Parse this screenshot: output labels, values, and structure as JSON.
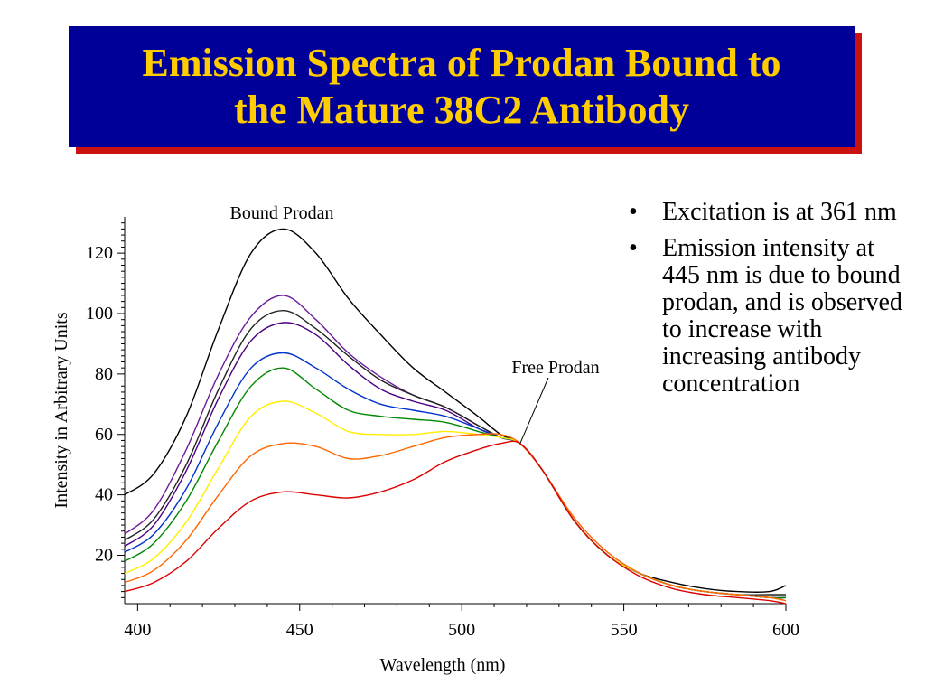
{
  "slide": {
    "title_line1": "Emission Spectra of Prodan Bound to",
    "title_line2": "the Mature 38C2 Antibody",
    "colors": {
      "title_bg": "#000099",
      "title_text": "#ffcc00",
      "title_shadow": "#cc1111"
    }
  },
  "bullets": [
    "Excitation is at 361 nm",
    "Emission intensity at 445 nm is due to bound prodan, and is observed to increase with increasing antibody concentration"
  ],
  "chart_data": {
    "type": "line",
    "title": "",
    "xlabel": "Wavelength (nm)",
    "ylabel": "Intensity in Arbitrary Units",
    "xlim": [
      396,
      600
    ],
    "ylim": [
      4,
      132
    ],
    "xticks": [
      400,
      450,
      500,
      550,
      600
    ],
    "yticks": [
      20,
      40,
      60,
      80,
      100,
      120
    ],
    "grid": false,
    "annotations": [
      {
        "text": "Bound Prodan",
        "x": 445,
        "y": 128
      },
      {
        "text": "Free Prodan",
        "x": 518,
        "y": 57
      }
    ],
    "x": [
      396,
      405,
      415,
      425,
      435,
      445,
      455,
      465,
      475,
      485,
      495,
      505,
      512,
      518,
      525,
      535,
      545,
      555,
      565,
      575,
      585,
      595,
      600
    ],
    "series": [
      {
        "color": "#000000",
        "values": [
          40,
          47,
          66,
          95,
          120,
          128,
          120,
          105,
          93,
          82,
          74,
          66,
          60,
          57,
          48,
          31,
          20,
          14,
          11,
          9,
          8,
          8,
          10
        ]
      },
      {
        "color": "#6a1b9a",
        "values": [
          27,
          35,
          55,
          80,
          99,
          106,
          98,
          87,
          79,
          73,
          69,
          63,
          59,
          57,
          48,
          31,
          20,
          14,
          10,
          8,
          7,
          6,
          6
        ]
      },
      {
        "color": "#222222",
        "values": [
          25,
          32,
          50,
          75,
          95,
          101,
          95,
          86,
          78,
          73,
          69,
          63,
          59,
          57,
          48,
          31,
          20,
          14,
          10,
          8,
          7,
          7,
          7
        ]
      },
      {
        "color": "#4b0082",
        "values": [
          23,
          30,
          48,
          72,
          91,
          97,
          93,
          83,
          75,
          71,
          68,
          62,
          59,
          57,
          48,
          31,
          20,
          14,
          10,
          8,
          7,
          6,
          6
        ]
      },
      {
        "color": "#0033cc",
        "values": [
          21,
          27,
          42,
          64,
          82,
          87,
          82,
          75,
          70,
          68,
          66,
          62,
          59,
          57,
          48,
          31,
          20,
          14,
          10,
          8,
          7,
          6,
          6
        ]
      },
      {
        "color": "#008800",
        "values": [
          18,
          24,
          38,
          58,
          76,
          82,
          75,
          68,
          66,
          65,
          64,
          61,
          59,
          57,
          48,
          31,
          20,
          14,
          10,
          8,
          7,
          6,
          6
        ]
      },
      {
        "color": "#ffee00",
        "values": [
          14,
          19,
          31,
          49,
          66,
          71,
          67,
          61,
          60,
          60,
          61,
          60,
          59,
          57,
          48,
          31,
          20,
          14,
          10,
          8,
          7,
          6,
          5
        ]
      },
      {
        "color": "#ff6600",
        "values": [
          11,
          15,
          25,
          40,
          53,
          57,
          56,
          52,
          53,
          56,
          59,
          60,
          60,
          57,
          48,
          32,
          21,
          14,
          10,
          8,
          7,
          6,
          5
        ]
      },
      {
        "color": "#dd0000",
        "values": [
          8,
          11,
          18,
          29,
          38,
          41,
          40,
          39,
          41,
          45,
          51,
          55,
          57,
          57,
          48,
          31,
          20,
          13,
          9,
          7,
          6,
          5,
          4
        ]
      }
    ]
  }
}
